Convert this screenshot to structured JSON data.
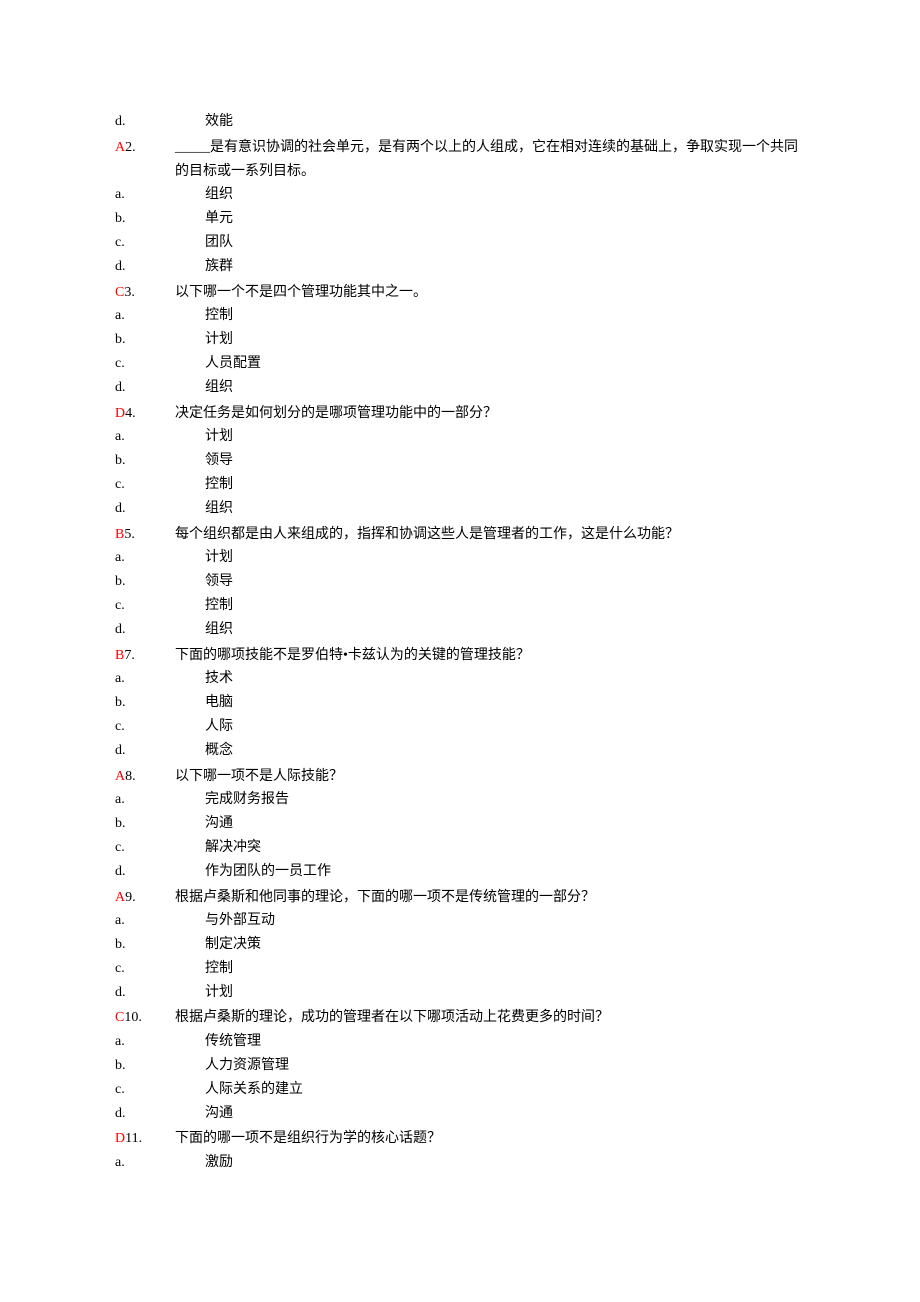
{
  "orphan_option": {
    "letter": "d.",
    "text": "效能"
  },
  "questions": [
    {
      "answer": "A",
      "number": "2.",
      "text": "_____是有意识协调的社会单元，是有两个以上的人组成，它在相对连续的基础上，争取实现一个共同的目标或一系列目标。",
      "options": [
        {
          "letter": "a.",
          "text": "组织"
        },
        {
          "letter": "b.",
          "text": "单元"
        },
        {
          "letter": "c.",
          "text": "团队"
        },
        {
          "letter": "d.",
          "text": "族群"
        }
      ]
    },
    {
      "answer": "C",
      "number": "3.",
      "text": "以下哪一个不是四个管理功能其中之一。",
      "options": [
        {
          "letter": "a.",
          "text": "控制"
        },
        {
          "letter": "b.",
          "text": "计划"
        },
        {
          "letter": "c.",
          "text": "人员配置"
        },
        {
          "letter": "d.",
          "text": "组织"
        }
      ]
    },
    {
      "answer": "D",
      "number": "4.",
      "text": "决定任务是如何划分的是哪项管理功能中的一部分？",
      "options": [
        {
          "letter": "a.",
          "text": "计划"
        },
        {
          "letter": "b.",
          "text": "领导"
        },
        {
          "letter": "c.",
          "text": "控制"
        },
        {
          "letter": "d.",
          "text": "组织"
        }
      ]
    },
    {
      "answer": "B",
      "number": "5.",
      "text": "每个组织都是由人来组成的，指挥和协调这些人是管理者的工作，这是什么功能？",
      "options": [
        {
          "letter": "a.",
          "text": "计划"
        },
        {
          "letter": "b.",
          "text": "领导"
        },
        {
          "letter": "c.",
          "text": "控制"
        },
        {
          "letter": "d.",
          "text": "组织"
        }
      ]
    },
    {
      "answer": "B",
      "number": "7.",
      "text": "下面的哪项技能不是罗伯特•卡兹认为的关键的管理技能？",
      "options": [
        {
          "letter": "a.",
          "text": "技术"
        },
        {
          "letter": "b.",
          "text": "电脑"
        },
        {
          "letter": "c.",
          "text": "人际"
        },
        {
          "letter": "d.",
          "text": "概念"
        }
      ]
    },
    {
      "answer": "A",
      "number": "8.",
      "text": "以下哪一项不是人际技能？",
      "options": [
        {
          "letter": "a.",
          "text": "完成财务报告"
        },
        {
          "letter": "b.",
          "text": "沟通"
        },
        {
          "letter": "c.",
          "text": "解决冲突"
        },
        {
          "letter": "d.",
          "text": "作为团队的一员工作"
        }
      ]
    },
    {
      "answer": "A",
      "number": "9.",
      "text": "根据卢桑斯和他同事的理论，下面的哪一项不是传统管理的一部分？",
      "options": [
        {
          "letter": "a.",
          "text": "与外部互动"
        },
        {
          "letter": "b.",
          "text": "制定决策"
        },
        {
          "letter": "c.",
          "text": "控制"
        },
        {
          "letter": "d.",
          "text": "计划"
        }
      ]
    },
    {
      "answer": "C",
      "number": "10.",
      "text": "根据卢桑斯的理论，成功的管理者在以下哪项活动上花费更多的时间？",
      "options": [
        {
          "letter": "a.",
          "text": "传统管理"
        },
        {
          "letter": "b.",
          "text": "人力资源管理"
        },
        {
          "letter": "c.",
          "text": "人际关系的建立"
        },
        {
          "letter": "d.",
          "text": "沟通"
        }
      ]
    },
    {
      "answer": "D",
      "number": "11.",
      "text": "下面的哪一项不是组织行为学的核心话题？",
      "options": [
        {
          "letter": "a.",
          "text": "激励"
        }
      ]
    }
  ]
}
